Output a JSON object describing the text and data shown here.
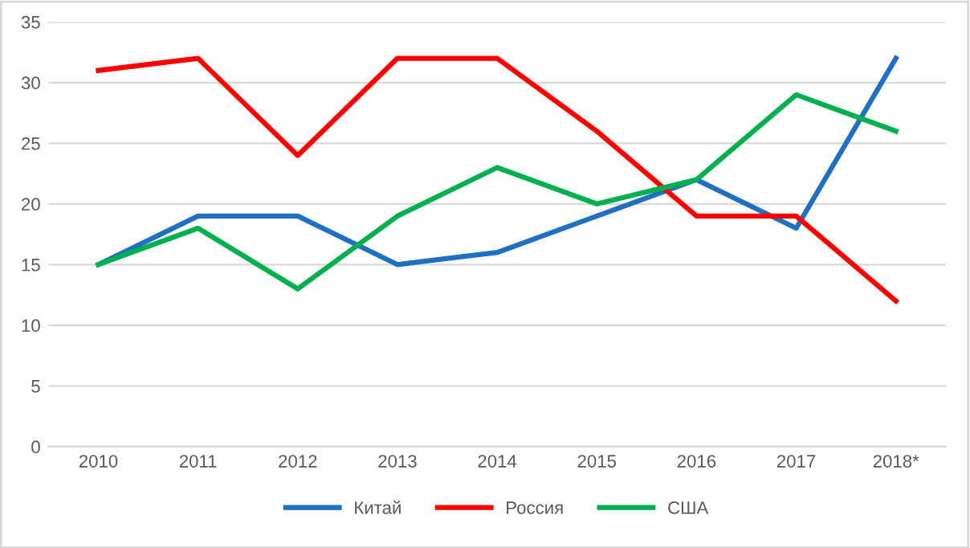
{
  "chart_data": {
    "type": "line",
    "categories": [
      "2010",
      "2011",
      "2012",
      "2013",
      "2014",
      "2015",
      "2016",
      "2017",
      "2018*"
    ],
    "series": [
      {
        "name": "Китай",
        "color": "#1f70c1",
        "values": [
          15,
          19,
          19,
          15,
          16,
          19,
          22,
          18,
          32
        ]
      },
      {
        "name": "Россия",
        "color": "#ff0000",
        "values": [
          31,
          32,
          24,
          32,
          32,
          26,
          19,
          19,
          12
        ]
      },
      {
        "name": "США",
        "color": "#00b050",
        "values": [
          15,
          18,
          13,
          19,
          23,
          20,
          22,
          29,
          26
        ]
      }
    ],
    "ylim": [
      0,
      35
    ],
    "yticks": [
      0,
      5,
      10,
      15,
      20,
      25,
      30,
      35
    ],
    "grid": "y",
    "legend": "bottom",
    "marker": "none",
    "line_style": "solid"
  }
}
